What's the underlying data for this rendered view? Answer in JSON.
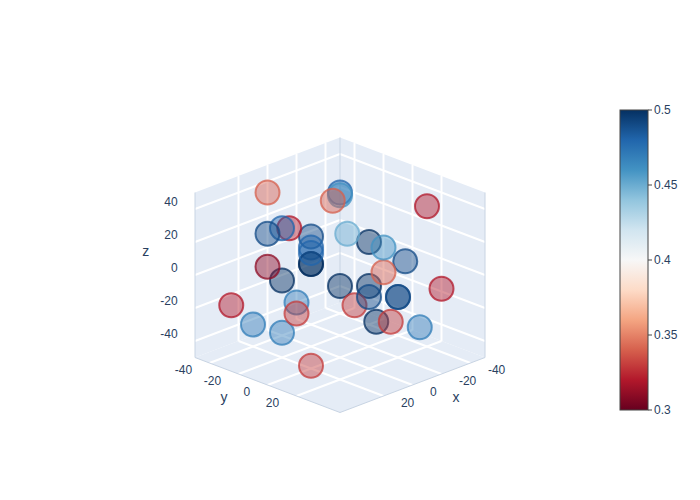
{
  "chart_data": {
    "type": "volume",
    "xlabel": "x",
    "ylabel": "y",
    "zlabel": "z",
    "xlim": [
      -50,
      50
    ],
    "ylim": [
      -50,
      50
    ],
    "zlim": [
      -50,
      50
    ],
    "xticks": [
      -40,
      -20,
      0,
      20
    ],
    "yticks": [
      -40,
      -20,
      0,
      20
    ],
    "zticks": [
      -40,
      -20,
      0,
      20,
      40
    ],
    "grid": true,
    "color": "RdBu",
    "colorbar": {
      "range": [
        0.3,
        0.5
      ],
      "ticks": [
        0.3,
        0.35,
        0.4,
        0.45,
        0.5
      ]
    },
    "points": {
      "x": [
        -30,
        -10,
        10,
        30,
        -30,
        -10,
        10,
        30,
        -20,
        0,
        20,
        -20,
        0,
        20,
        -35,
        35,
        -35,
        35,
        0,
        0,
        -25,
        25,
        -15,
        15,
        -40,
        40,
        -40,
        40,
        5,
        -5,
        30,
        -30,
        10,
        -10,
        20,
        -20
      ],
      "y": [
        -30,
        -30,
        -30,
        -30,
        10,
        10,
        10,
        10,
        -20,
        -20,
        -20,
        25,
        25,
        25,
        0,
        0,
        -40,
        -40,
        40,
        -40,
        30,
        -25,
        5,
        -5,
        20,
        20,
        -10,
        -10,
        35,
        -35,
        40,
        40,
        -40,
        -40,
        0,
        0
      ],
      "z": [
        30,
        10,
        -10,
        -30,
        -20,
        20,
        0,
        30,
        35,
        0,
        -35,
        10,
        -20,
        40,
        -40,
        40,
        20,
        -20,
        0,
        15,
        -30,
        25,
        -10,
        10,
        35,
        -35,
        -15,
        15,
        30,
        -30,
        5,
        -5,
        40,
        -40,
        20,
        -20
      ],
      "values": [
        0.48,
        0.49,
        0.5,
        0.47,
        0.49,
        0.5,
        0.5,
        0.48,
        0.46,
        0.5,
        0.47,
        0.49,
        0.5,
        0.45,
        0.33,
        0.32,
        0.34,
        0.32,
        0.49,
        0.48,
        0.47,
        0.49,
        0.5,
        0.5,
        0.32,
        0.33,
        0.34,
        0.31,
        0.46,
        0.47,
        0.33,
        0.32,
        0.34,
        0.33,
        0.48,
        0.49
      ]
    }
  }
}
